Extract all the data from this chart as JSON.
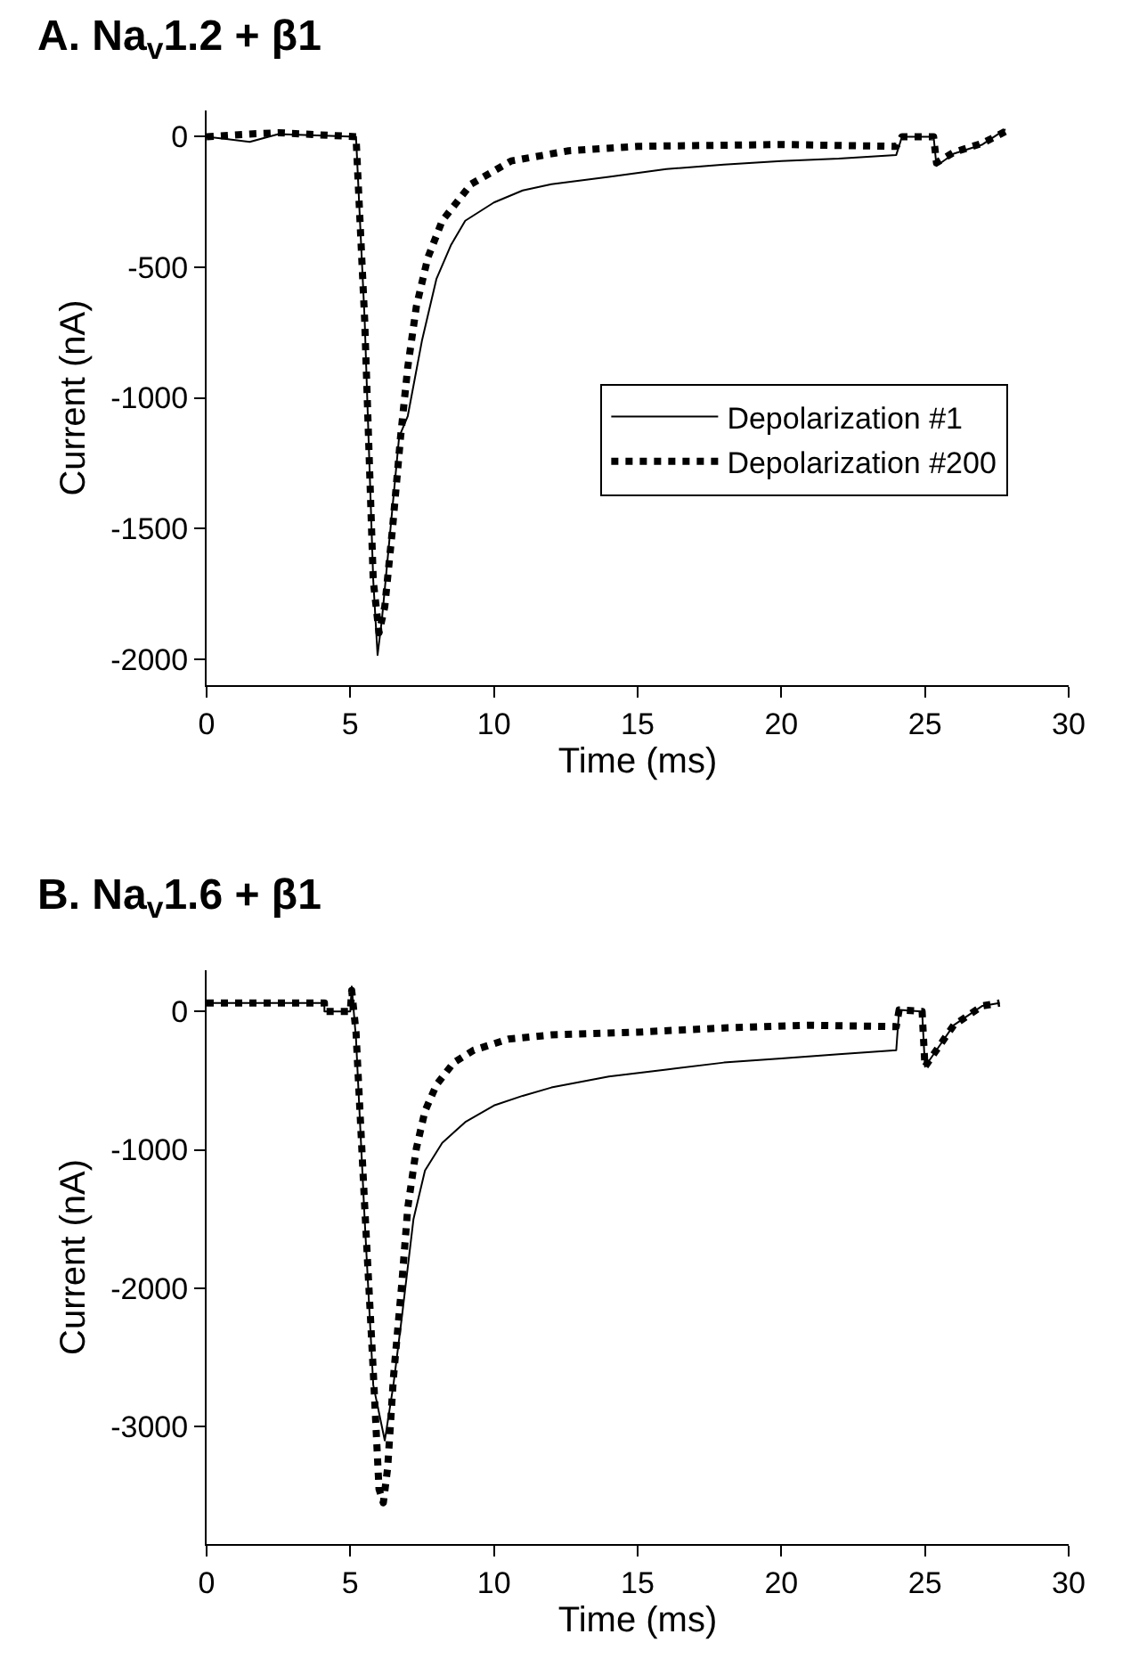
{
  "chart_data": [
    {
      "type": "line",
      "title": "A. Na$_{v}$1.2 + β1",
      "xlabel": "Time (ms)",
      "ylabel": "Current (nA)",
      "xlim": [
        0,
        30
      ],
      "xticks": [
        0,
        5,
        10,
        15,
        20,
        25,
        30
      ],
      "ylim": [
        -2100,
        100
      ],
      "yticks": [
        0,
        -500,
        -1000,
        -1500,
        -2000
      ],
      "legend": "right",
      "series": [
        {
          "name": "Depolarization #1",
          "color": "#000000",
          "line_style": "solid",
          "x": [
            0,
            1.5,
            2.5,
            5.2,
            5.5,
            5.8,
            5.95,
            6.1,
            6.4,
            6.7,
            7.0,
            7.5,
            8.0,
            8.5,
            9.0,
            10,
            11,
            12,
            14,
            16,
            18,
            20,
            22,
            24,
            24.2,
            25.3,
            25.4,
            26,
            27,
            27.8
          ],
          "values": [
            0,
            -20,
            10,
            0,
            -700,
            -1700,
            -1985,
            -1850,
            -1500,
            -1150,
            -1070,
            -778,
            -544,
            -416,
            -322,
            -252,
            -206,
            -182,
            -154,
            -124,
            -107,
            -93,
            -84,
            -70,
            0,
            0,
            -112,
            -65,
            -30,
            28
          ]
        },
        {
          "name": "Depolarization #200",
          "color": "#000000",
          "line_style": "dotted",
          "x": [
            0,
            1.5,
            2.5,
            5.2,
            5.5,
            5.8,
            6.0,
            6.2,
            6.47,
            6.75,
            7.0,
            7.3,
            7.7,
            8.2,
            9.2,
            10.6,
            12.6,
            15,
            20,
            24,
            24.2,
            25.3,
            25.4,
            26,
            27,
            27.8
          ],
          "values": [
            0,
            10,
            15,
            0,
            -700,
            -1700,
            -1900,
            -1800,
            -1500,
            -1150,
            -883,
            -650,
            -463,
            -322,
            -182,
            -93,
            -54,
            -37,
            -30,
            -37,
            0,
            0,
            -100,
            -60,
            -25,
            20
          ]
        }
      ]
    },
    {
      "type": "line",
      "title": "B. Na$_{v}$1.6 + β1",
      "xlabel": "Time (ms)",
      "ylabel": "Current (nA)",
      "xlim": [
        0,
        30
      ],
      "xticks": [
        0,
        5,
        10,
        15,
        20,
        25,
        30
      ],
      "ylim": [
        -3850,
        300
      ],
      "yticks": [
        0,
        -1000,
        -2000,
        -3000
      ],
      "legend": false,
      "series": [
        {
          "color": "#000000",
          "line_style": "solid",
          "x": [
            0,
            4.1,
            4.1,
            5.0,
            5.05,
            5.2,
            5.5,
            5.8,
            6.2,
            6.5,
            6.8,
            7.2,
            7.6,
            8.2,
            9,
            10,
            11,
            12,
            14,
            16,
            18,
            20,
            22,
            24,
            24.1,
            24.9,
            25.0,
            25.5,
            26,
            27,
            27.6
          ],
          "values": [
            60,
            60,
            0,
            0,
            180,
            -200,
            -1500,
            -2700,
            -3100,
            -2700,
            -2200,
            -1500,
            -1150,
            -950,
            -800,
            -680,
            -610,
            -550,
            -470,
            -420,
            -370,
            -340,
            -310,
            -280,
            10,
            0,
            -400,
            -250,
            -100,
            40,
            60
          ]
        },
        {
          "color": "#000000",
          "line_style": "dotted",
          "x": [
            0,
            4.1,
            4.1,
            5.0,
            5.05,
            5.2,
            5.5,
            5.8,
            6.0,
            6.15,
            6.3,
            6.5,
            6.8,
            7.0,
            7.3,
            7.6,
            8.0,
            8.6,
            9.3,
            10.5,
            12,
            15,
            18,
            21,
            24,
            24.1,
            24.9,
            25.0,
            25.5,
            26,
            27,
            27.6
          ],
          "values": [
            60,
            60,
            0,
            0,
            150,
            -150,
            -1400,
            -2600,
            -3450,
            -3550,
            -3300,
            -2650,
            -1950,
            -1420,
            -990,
            -720,
            -530,
            -370,
            -280,
            -200,
            -170,
            -150,
            -120,
            -100,
            -110,
            10,
            0,
            -400,
            -250,
            -100,
            40,
            60
          ]
        }
      ]
    }
  ]
}
